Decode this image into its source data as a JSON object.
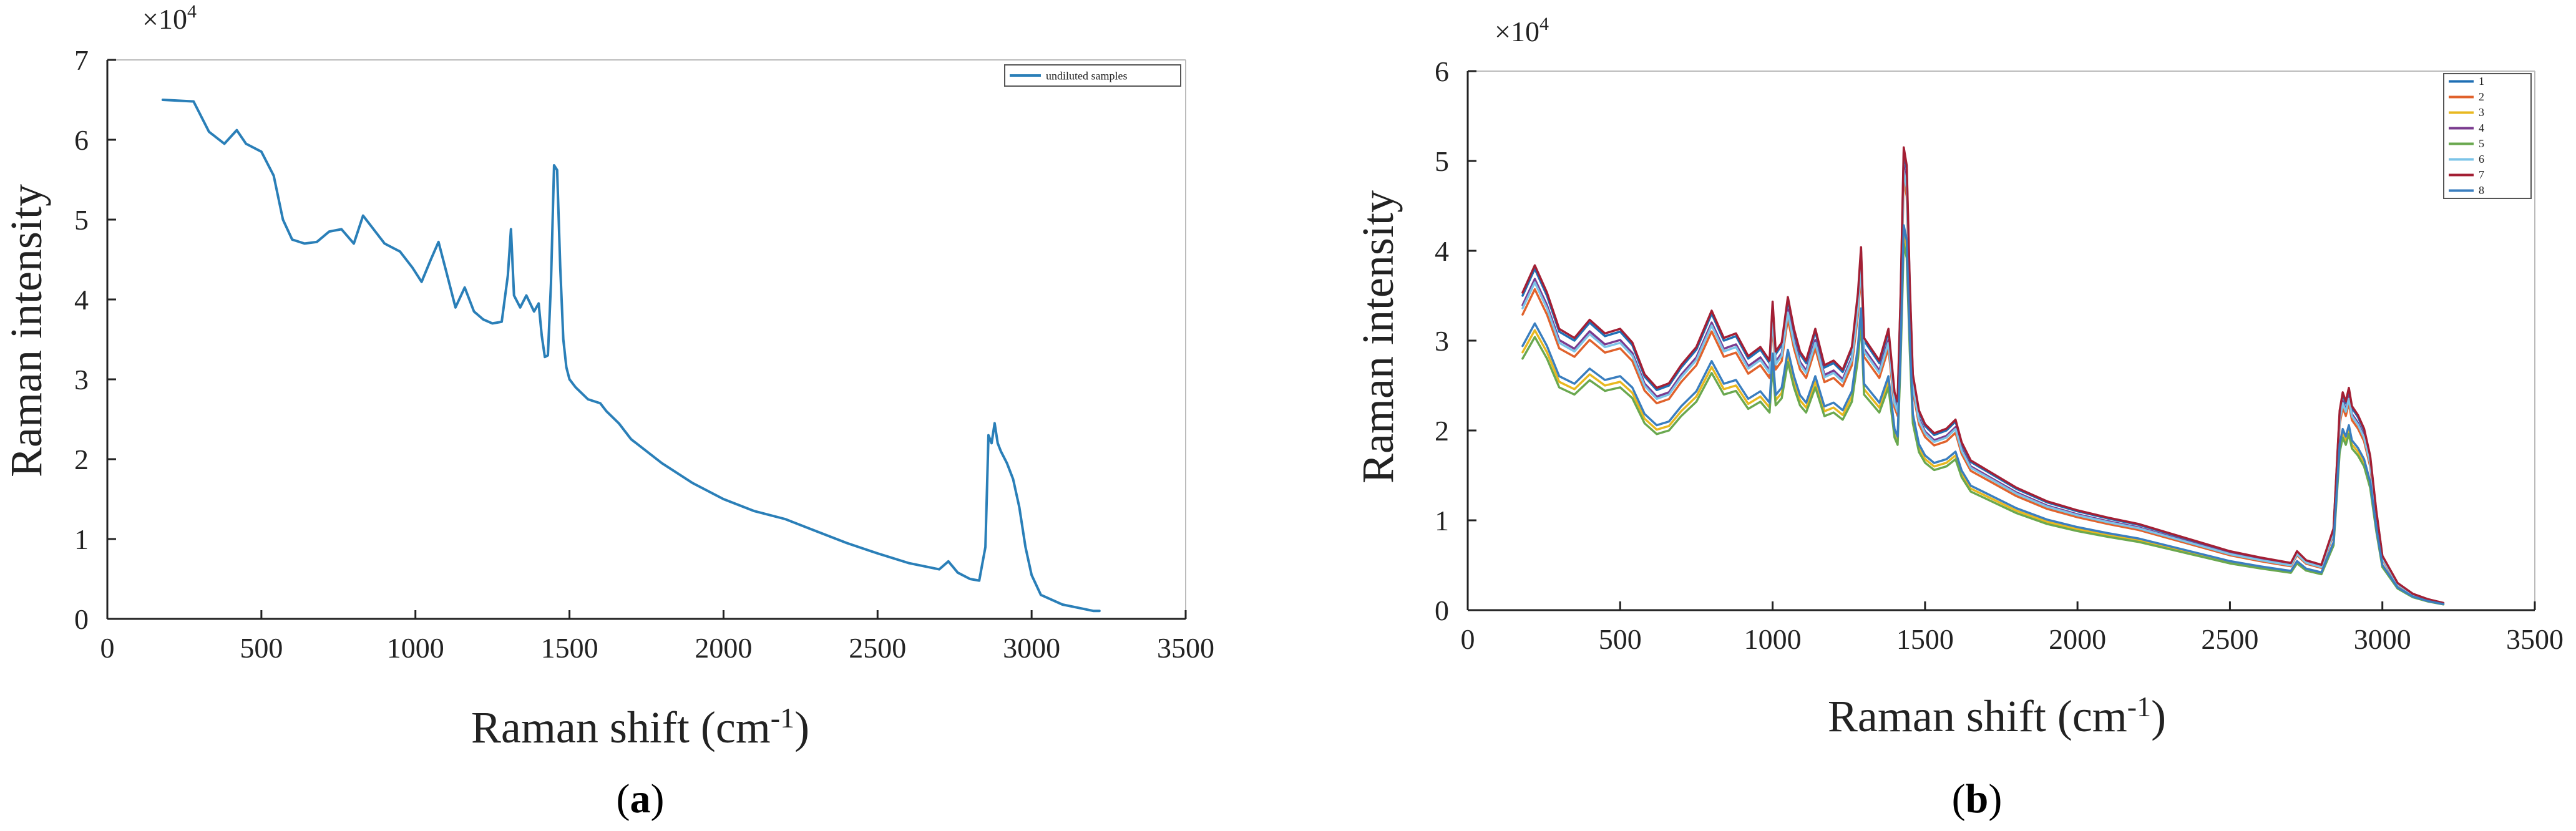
{
  "chart_data": [
    {
      "id": "a",
      "type": "line",
      "panel_label": "(a)",
      "panel_letter": "a",
      "multiplier": "×10",
      "multiplier_exp": "4",
      "xlabel": "Raman shift (cm",
      "xlabel_sup": "-1",
      "xlabel_end": ")",
      "ylabel": "Raman intensity",
      "xlim": [
        0,
        3500
      ],
      "ylim": [
        0,
        7
      ],
      "xticks": [
        0,
        500,
        1000,
        1500,
        2000,
        2500,
        3000,
        3500
      ],
      "yticks": [
        0,
        1,
        2,
        3,
        4,
        5,
        6,
        7
      ],
      "grid": false,
      "legend_position": "top-right",
      "series": [
        {
          "name": "undiluted samples",
          "color": "#2a7fb8",
          "x": [
            180,
            280,
            330,
            380,
            420,
            450,
            500,
            540,
            570,
            600,
            640,
            680,
            720,
            760,
            800,
            830,
            860,
            900,
            950,
            990,
            1020,
            1050,
            1075,
            1100,
            1130,
            1160,
            1190,
            1220,
            1250,
            1280,
            1300,
            1310,
            1320,
            1340,
            1360,
            1385,
            1400,
            1410,
            1420,
            1430,
            1440,
            1450,
            1460,
            1470,
            1480,
            1490,
            1500,
            1520,
            1560,
            1600,
            1620,
            1660,
            1700,
            1750,
            1800,
            1900,
            2000,
            2100,
            2200,
            2300,
            2400,
            2500,
            2600,
            2700,
            2730,
            2760,
            2800,
            2830,
            2850,
            2860,
            2870,
            2880,
            2890,
            2900,
            2920,
            2940,
            2960,
            2980,
            3000,
            3030,
            3100,
            3150,
            3200,
            3220
          ],
          "y": [
            6.5,
            6.48,
            6.1,
            5.95,
            6.12,
            5.95,
            5.85,
            5.55,
            5.0,
            4.75,
            4.7,
            4.72,
            4.85,
            4.88,
            4.7,
            5.05,
            4.9,
            4.7,
            4.6,
            4.4,
            4.22,
            4.5,
            4.72,
            4.35,
            3.9,
            4.15,
            3.85,
            3.75,
            3.7,
            3.72,
            4.3,
            4.88,
            4.05,
            3.9,
            4.05,
            3.85,
            3.95,
            3.55,
            3.28,
            3.3,
            4.2,
            5.68,
            5.62,
            4.4,
            3.5,
            3.15,
            3.0,
            2.9,
            2.75,
            2.7,
            2.6,
            2.45,
            2.25,
            2.1,
            1.95,
            1.7,
            1.5,
            1.35,
            1.25,
            1.1,
            0.95,
            0.82,
            0.7,
            0.62,
            0.72,
            0.58,
            0.5,
            0.48,
            0.9,
            2.3,
            2.2,
            2.45,
            2.2,
            2.1,
            1.95,
            1.75,
            1.4,
            0.9,
            0.55,
            0.3,
            0.18,
            0.14,
            0.1,
            0.1
          ]
        }
      ]
    },
    {
      "id": "b",
      "type": "line",
      "panel_label": "(b)",
      "panel_letter": "b",
      "multiplier": "×10",
      "multiplier_exp": "4",
      "xlabel": "Raman shift (cm",
      "xlabel_sup": "-1",
      "xlabel_end": ")",
      "ylabel": "Raman intensity",
      "xlim": [
        0,
        3500
      ],
      "ylim": [
        0,
        6
      ],
      "xticks": [
        0,
        500,
        1000,
        1500,
        2000,
        2500,
        3000,
        3500
      ],
      "yticks": [
        0,
        1,
        2,
        3,
        4,
        5,
        6
      ],
      "grid": false,
      "legend_position": "top-right",
      "base_x": [
        180,
        220,
        260,
        300,
        350,
        400,
        450,
        500,
        540,
        580,
        620,
        660,
        700,
        750,
        800,
        840,
        880,
        920,
        960,
        990,
        1000,
        1010,
        1030,
        1050,
        1070,
        1090,
        1110,
        1140,
        1170,
        1200,
        1230,
        1260,
        1280,
        1290,
        1300,
        1320,
        1350,
        1380,
        1400,
        1410,
        1420,
        1430,
        1440,
        1450,
        1460,
        1480,
        1500,
        1530,
        1570,
        1600,
        1620,
        1650,
        1700,
        1800,
        1900,
        2000,
        2100,
        2200,
        2300,
        2400,
        2500,
        2600,
        2650,
        2700,
        2720,
        2750,
        2800,
        2840,
        2860,
        2870,
        2880,
        2890,
        2900,
        2920,
        2940,
        2960,
        2980,
        3000,
        3050,
        3100,
        3150,
        3200
      ],
      "base_y": [
        3.5,
        3.8,
        3.5,
        3.1,
        3.0,
        3.2,
        3.05,
        3.1,
        2.95,
        2.6,
        2.45,
        2.5,
        2.7,
        2.9,
        3.3,
        3.0,
        3.05,
        2.8,
        2.9,
        2.75,
        3.4,
        2.85,
        2.95,
        3.45,
        3.1,
        2.85,
        2.75,
        3.1,
        2.7,
        2.75,
        2.65,
        2.9,
        3.5,
        4.0,
        3.0,
        2.9,
        2.75,
        3.1,
        2.4,
        2.3,
        3.5,
        5.1,
        4.9,
        3.6,
        2.6,
        2.2,
        2.05,
        1.95,
        2.0,
        2.1,
        1.85,
        1.65,
        1.55,
        1.35,
        1.2,
        1.1,
        1.02,
        0.95,
        0.85,
        0.75,
        0.65,
        0.58,
        0.55,
        0.52,
        0.65,
        0.55,
        0.5,
        0.9,
        2.2,
        2.4,
        2.3,
        2.45,
        2.25,
        2.15,
        2.0,
        1.7,
        1.1,
        0.6,
        0.3,
        0.18,
        0.12,
        0.08
      ],
      "series": [
        {
          "name": "1",
          "color": "#1f6fb4",
          "scale": 1.0
        },
        {
          "name": "2",
          "color": "#e0622c",
          "scale": 0.94
        },
        {
          "name": "3",
          "color": "#e8b820",
          "scale": 0.82
        },
        {
          "name": "4",
          "color": "#7a3b8f",
          "scale": 0.97
        },
        {
          "name": "5",
          "color": "#6aa84f",
          "scale": 0.8
        },
        {
          "name": "6",
          "color": "#7cc4e8",
          "scale": 0.96
        },
        {
          "name": "7",
          "color": "#a31f34",
          "scale": 1.01
        },
        {
          "name": "8",
          "color": "#3a7ebf",
          "scale": 0.84
        }
      ]
    }
  ]
}
